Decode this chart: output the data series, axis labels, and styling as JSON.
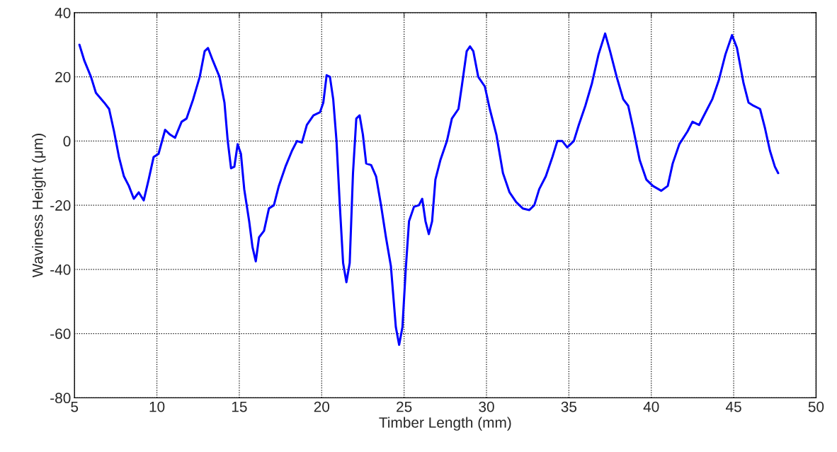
{
  "chart_data": {
    "type": "line",
    "xlabel": "Timber Length (mm)",
    "ylabel": "Waviness Height (μm)",
    "xlim": [
      5,
      50
    ],
    "xticks": [
      5,
      10,
      15,
      20,
      25,
      30,
      35,
      40,
      45,
      50
    ],
    "ylim": [
      -80,
      40
    ],
    "yticks": [
      -80,
      -60,
      -40,
      -20,
      0,
      20,
      40
    ],
    "grid": true,
    "marker": "none",
    "line_style": "solid",
    "x": [
      5.3,
      5.6,
      6.0,
      6.3,
      6.8,
      7.1,
      7.4,
      7.7,
      8.0,
      8.3,
      8.6,
      8.9,
      9.2,
      9.5,
      9.8,
      10.1,
      10.5,
      10.8,
      11.1,
      11.5,
      11.8,
      12.2,
      12.6,
      12.9,
      13.1,
      13.4,
      13.8,
      14.1,
      14.3,
      14.5,
      14.7,
      14.9,
      15.1,
      15.3,
      15.6,
      15.8,
      16.0,
      16.2,
      16.5,
      16.8,
      17.1,
      17.4,
      17.8,
      18.2,
      18.5,
      18.8,
      19.1,
      19.5,
      19.9,
      20.1,
      20.3,
      20.5,
      20.7,
      20.9,
      21.1,
      21.3,
      21.5,
      21.7,
      21.9,
      22.1,
      22.3,
      22.5,
      22.7,
      23.0,
      23.3,
      23.6,
      23.9,
      24.2,
      24.5,
      24.7,
      24.9,
      25.1,
      25.3,
      25.6,
      25.9,
      26.1,
      26.3,
      26.5,
      26.7,
      26.9,
      27.2,
      27.6,
      27.9,
      28.3,
      28.5,
      28.8,
      29.0,
      29.2,
      29.5,
      29.9,
      30.2,
      30.6,
      31.0,
      31.4,
      31.8,
      32.2,
      32.6,
      32.9,
      33.2,
      33.6,
      34.0,
      34.3,
      34.6,
      34.9,
      35.3,
      35.6,
      36.0,
      36.4,
      36.8,
      37.2,
      37.5,
      37.9,
      38.3,
      38.6,
      38.9,
      39.3,
      39.7,
      40.1,
      40.6,
      41.0,
      41.3,
      41.7,
      42.2,
      42.5,
      42.9,
      43.3,
      43.7,
      44.1,
      44.5,
      44.9,
      45.2,
      45.6,
      45.9,
      46.2,
      46.6,
      46.9,
      47.2,
      47.5,
      47.7
    ],
    "series": [
      {
        "color": "#0000ff",
        "values": [
          30,
          25,
          20,
          15,
          12,
          10,
          3,
          -5,
          -11,
          -14,
          -18,
          -16,
          -18.5,
          -12,
          -5,
          -4,
          3.5,
          2,
          1,
          6,
          7,
          13,
          20,
          28,
          29,
          25,
          20,
          12,
          0,
          -8.5,
          -8,
          -1,
          -4,
          -15,
          -25,
          -33,
          -37.5,
          -30,
          -28,
          -21,
          -20,
          -14,
          -8,
          -3,
          0,
          -0.5,
          5,
          8,
          9,
          12,
          20.5,
          20,
          13,
          0,
          -20,
          -38,
          -44,
          -38,
          -10,
          7,
          8,
          2,
          -7,
          -7.5,
          -11,
          -20,
          -30,
          -39,
          -58,
          -63.5,
          -58,
          -40,
          -25,
          -20.5,
          -20,
          -18,
          -25,
          -29,
          -25,
          -12,
          -6,
          0,
          7,
          10,
          17,
          28,
          29.5,
          28,
          20,
          17,
          10,
          2,
          -10,
          -16,
          -19,
          -21,
          -21.5,
          -20,
          -15,
          -11,
          -5,
          0,
          0,
          -2,
          0,
          5,
          11,
          18,
          27,
          33.5,
          28,
          20,
          13,
          11,
          4,
          -6,
          -12,
          -14,
          -15.5,
          -14,
          -7,
          -1,
          3,
          6,
          5,
          9,
          13,
          19,
          27,
          33,
          29,
          18,
          12,
          11,
          10,
          4,
          -3,
          -8,
          -10
        ]
      }
    ]
  }
}
